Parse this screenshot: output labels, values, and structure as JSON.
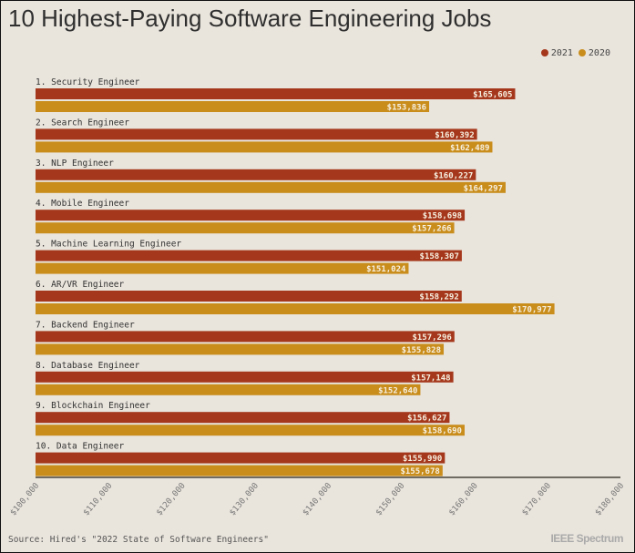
{
  "chart_data": {
    "type": "bar",
    "orientation": "horizontal",
    "title": "10 Highest-Paying Software Engineering Jobs",
    "categories": [
      "1. Security Engineer",
      "2. Search Engineer",
      "3. NLP Engineer",
      "4. Mobile Engineer",
      "5. Machine Learning Engineer",
      "6. AR/VR Engineer",
      "7. Backend Engineer",
      "8. Database Engineer",
      "9. Blockchain Engineer",
      "10. Data Engineer"
    ],
    "series": [
      {
        "name": "2021",
        "color": "#a5381c",
        "values": [
          165605,
          160392,
          160227,
          158698,
          158307,
          158292,
          157296,
          157148,
          156627,
          155990
        ],
        "labels": [
          "$165,605",
          "$160,392",
          "$160,227",
          "$158,698",
          "$158,307",
          "$158,292",
          "$157,296",
          "$157,148",
          "$156,627",
          "$155,990"
        ]
      },
      {
        "name": "2020",
        "color": "#c98d1c",
        "values": [
          153836,
          162489,
          164297,
          157266,
          151024,
          170977,
          155828,
          152640,
          158690,
          155678
        ],
        "labels": [
          "$153,836",
          "$162,489",
          "$164,297",
          "$157,266",
          "$151,024",
          "$170,977",
          "$155,828",
          "$152,640",
          "$158,690",
          "$155,678"
        ]
      }
    ],
    "xlim": [
      100000,
      180000
    ],
    "xticks": [
      "$100,000",
      "$110,000",
      "$120,000",
      "$130,000",
      "$140,000",
      "$150,000",
      "$160,000",
      "$170,000",
      "$180,000"
    ],
    "legend_placement": "top-right",
    "grid": false
  },
  "source": "Source: Hired's \"2022 State of Software Engineers\"",
  "logo": "IEEE Spectrum"
}
